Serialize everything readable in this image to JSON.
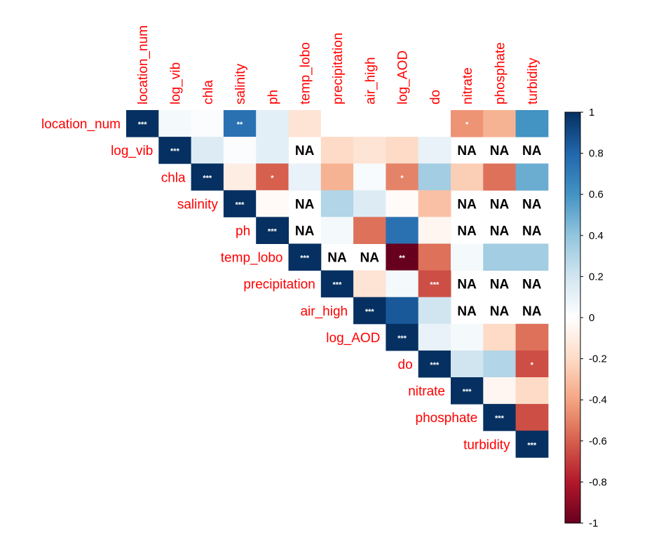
{
  "chart_data": {
    "type": "heatmap",
    "variables": [
      "location_num",
      "log_vib",
      "chla",
      "salinity",
      "ph",
      "temp_lobo",
      "precipitation",
      "air_high",
      "log_AOD",
      "do",
      "nitrate",
      "phosphate",
      "turbidity"
    ],
    "layout": "upper-triangle",
    "scale": {
      "min": -1,
      "max": 1,
      "ticks": [
        "1",
        "0.8",
        "0.6",
        "0.4",
        "0.2",
        "0",
        "-0.2",
        "-0.4",
        "-0.6",
        "-0.8",
        "-1"
      ]
    },
    "colors": {
      "negative": "#67001f",
      "zero": "#ffffff",
      "positive": "#053061"
    },
    "matrix": [
      [
        1,
        0.05,
        0.02,
        0.75,
        0.12,
        -0.15,
        0,
        0,
        0,
        0,
        -0.45,
        -0.35,
        0.6
      ],
      [
        null,
        1,
        0.15,
        0.02,
        0.12,
        "NA",
        -0.2,
        -0.15,
        -0.2,
        0.1,
        "NA",
        "NA",
        "NA"
      ],
      [
        null,
        null,
        1,
        -0.1,
        -0.6,
        0.1,
        -0.35,
        0.03,
        -0.5,
        0.35,
        -0.25,
        -0.55,
        0.5
      ],
      [
        null,
        null,
        null,
        1,
        -0.03,
        "NA",
        0.3,
        0.15,
        -0.02,
        -0.3,
        "NA",
        "NA",
        "NA"
      ],
      [
        null,
        null,
        null,
        null,
        1,
        "NA",
        0.05,
        -0.55,
        0.75,
        -0.05,
        "NA",
        "NA",
        "NA"
      ],
      [
        null,
        null,
        null,
        null,
        null,
        1,
        "NA",
        "NA",
        -1,
        -0.55,
        0.05,
        0.35,
        0.35
      ],
      [
        null,
        null,
        null,
        null,
        null,
        null,
        1,
        -0.15,
        0.05,
        -0.65,
        "NA",
        "NA",
        "NA"
      ],
      [
        null,
        null,
        null,
        null,
        null,
        null,
        null,
        1,
        0.85,
        0.2,
        "NA",
        "NA",
        "NA"
      ],
      [
        null,
        null,
        null,
        null,
        null,
        null,
        null,
        null,
        1,
        0.1,
        0.05,
        -0.2,
        -0.55
      ],
      [
        null,
        null,
        null,
        null,
        null,
        null,
        null,
        null,
        null,
        1,
        0.2,
        0.3,
        -0.65
      ],
      [
        null,
        null,
        null,
        null,
        null,
        null,
        null,
        null,
        null,
        null,
        1,
        -0.05,
        -0.2
      ],
      [
        null,
        null,
        null,
        null,
        null,
        null,
        null,
        null,
        null,
        null,
        null,
        1,
        -0.65
      ],
      [
        null,
        null,
        null,
        null,
        null,
        null,
        null,
        null,
        null,
        null,
        null,
        null,
        1
      ]
    ],
    "significance": [
      {
        "row": 0,
        "col": 0,
        "label": "***"
      },
      {
        "row": 0,
        "col": 3,
        "label": "**"
      },
      {
        "row": 0,
        "col": 10,
        "label": "*"
      },
      {
        "row": 1,
        "col": 1,
        "label": "***"
      },
      {
        "row": 2,
        "col": 2,
        "label": "***"
      },
      {
        "row": 2,
        "col": 4,
        "label": "*"
      },
      {
        "row": 2,
        "col": 8,
        "label": "*"
      },
      {
        "row": 3,
        "col": 3,
        "label": "***"
      },
      {
        "row": 4,
        "col": 4,
        "label": "***"
      },
      {
        "row": 5,
        "col": 5,
        "label": "***"
      },
      {
        "row": 5,
        "col": 8,
        "label": "**"
      },
      {
        "row": 6,
        "col": 6,
        "label": "***"
      },
      {
        "row": 6,
        "col": 9,
        "label": "***"
      },
      {
        "row": 7,
        "col": 7,
        "label": "***"
      },
      {
        "row": 8,
        "col": 8,
        "label": "***"
      },
      {
        "row": 9,
        "col": 9,
        "label": "***"
      },
      {
        "row": 9,
        "col": 12,
        "label": "*"
      },
      {
        "row": 10,
        "col": 10,
        "label": "***"
      },
      {
        "row": 11,
        "col": 11,
        "label": "***"
      },
      {
        "row": 12,
        "col": 12,
        "label": "***"
      }
    ],
    "na_label": "NA",
    "grid": false,
    "legend": "right"
  }
}
